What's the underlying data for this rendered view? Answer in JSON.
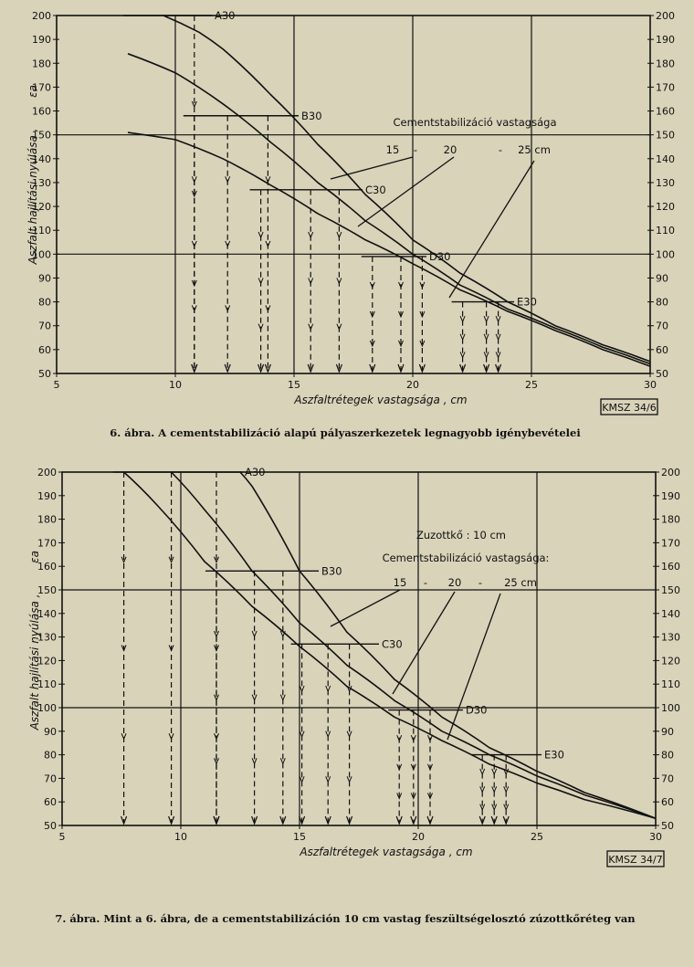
{
  "chart_data": [
    {
      "type": "line",
      "xlabel": "Aszfaltrétegek vastagsága , cm",
      "ylabel": "Aszfalt hajlítási nyúlása ,",
      "ylabel_symbol": "εa",
      "xlim": [
        5,
        30
      ],
      "ylim": [
        50,
        200
      ],
      "x_ticks": [
        5,
        10,
        15,
        20,
        25,
        30
      ],
      "y_ticks": [
        50,
        60,
        70,
        80,
        90,
        100,
        110,
        120,
        130,
        140,
        150,
        160,
        170,
        180,
        190,
        200
      ],
      "grid_x": [
        10,
        15,
        20,
        25
      ],
      "grid_y": [
        100,
        150
      ],
      "legend_title": "Cementstabilizáció vastagsága",
      "legend_values": [
        "15",
        "-",
        "20",
        "-",
        "25 cm"
      ],
      "series": [
        {
          "name": "15",
          "x": [
            8,
            10,
            12,
            14,
            16,
            18,
            20,
            22,
            24,
            26,
            28,
            30
          ],
          "y": [
            151,
            148,
            140,
            129,
            117,
            106,
            96,
            85,
            76,
            68,
            60,
            53
          ]
        },
        {
          "name": "20",
          "x": [
            8,
            10,
            12,
            14,
            16,
            18,
            20,
            22,
            24,
            26,
            28,
            30
          ],
          "y": [
            184,
            176,
            163,
            147,
            130,
            114,
            100,
            87,
            77,
            69,
            61,
            54
          ]
        },
        {
          "name": "25",
          "x": [
            9.5,
            11,
            12,
            14,
            16,
            18,
            20,
            22,
            24,
            26,
            28,
            30
          ],
          "y": [
            200,
            193,
            186,
            167,
            146,
            125,
            106,
            92,
            80,
            70,
            62,
            55
          ]
        }
      ],
      "levels": [
        {
          "label": "A30",
          "y": 200,
          "x": [
            10.8
          ]
        },
        {
          "label": "B30",
          "y": 158,
          "x": [
            10.8,
            12.2,
            13.9
          ]
        },
        {
          "label": "C30",
          "y": 127,
          "x": [
            13.6,
            15.7,
            16.9
          ]
        },
        {
          "label": "D30",
          "y": 99,
          "x": [
            18.3,
            19.5,
            20.4
          ]
        },
        {
          "label": "E30",
          "y": 80,
          "x": [
            22.1,
            23.1,
            23.6
          ]
        }
      ],
      "badge": "KMSZ 34/6",
      "caption": "6. ábra. A cementstabilizáció alapú pályaszerkezetek legnagyobb igénybevételei"
    },
    {
      "type": "line",
      "xlabel": "Aszfaltrétegek vastagsága , cm",
      "ylabel": "Aszfalt hajlítási nyúlása ,",
      "ylabel_symbol": "εa",
      "xlim": [
        5,
        30
      ],
      "ylim": [
        50,
        200
      ],
      "x_ticks": [
        5,
        10,
        15,
        20,
        25,
        30
      ],
      "y_ticks": [
        50,
        60,
        70,
        80,
        90,
        100,
        110,
        120,
        130,
        140,
        150,
        160,
        170,
        180,
        190,
        200
      ],
      "grid_x": [
        10,
        15,
        20,
        25
      ],
      "grid_y": [
        100,
        150
      ],
      "note": "Zuzottkő : 10 cm",
      "legend_title": "Cementstabilizáció vastagsága:",
      "legend_values": [
        "15",
        "-",
        "20",
        "-",
        "25 cm"
      ],
      "series": [
        {
          "name": "15",
          "x": [
            7.6,
            9,
            11,
            13,
            15,
            17,
            19,
            21,
            23,
            25,
            27,
            30
          ],
          "y": [
            200,
            186,
            162,
            143,
            126,
            109,
            96,
            86,
            76,
            68,
            61,
            53
          ]
        },
        {
          "name": "20",
          "x": [
            9.6,
            11,
            13,
            15,
            17,
            19,
            21,
            23,
            25,
            27,
            30
          ],
          "y": [
            200,
            184,
            158,
            136,
            118,
            103,
            90,
            80,
            71,
            63,
            53
          ]
        },
        {
          "name": "25",
          "x": [
            12.5,
            13,
            15,
            17,
            19,
            21,
            23,
            25,
            27,
            30
          ],
          "y": [
            200,
            194,
            158,
            132,
            112,
            96,
            83,
            73,
            64,
            53
          ]
        }
      ],
      "levels": [
        {
          "label": "A30",
          "y": 200,
          "x": [
            7.6,
            9.6,
            11.5
          ]
        },
        {
          "label": "B30",
          "y": 158,
          "x": [
            11.5,
            13.1,
            14.3
          ]
        },
        {
          "label": "C30",
          "y": 127,
          "x": [
            15.1,
            16.2,
            17.1
          ]
        },
        {
          "label": "D30",
          "y": 99,
          "x": [
            19.2,
            19.8,
            20.5
          ]
        },
        {
          "label": "E30",
          "y": 80,
          "x": [
            22.7,
            23.2,
            23.7
          ]
        }
      ],
      "badge": "KMSZ 34/7",
      "caption": "7. ábra. Mint a 6. ábra, de a cementstabilizáción 10 cm vastag feszültségelosztó zúzottkőréteg van"
    }
  ]
}
